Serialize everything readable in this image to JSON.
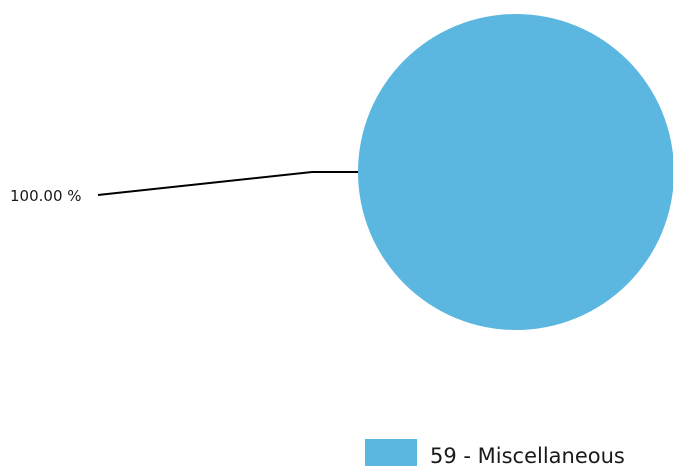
{
  "chart_data": {
    "type": "pie",
    "slices": [
      {
        "category": "59 - Miscellaneous",
        "value": 100.0,
        "label": "100.00 %",
        "color": "#5bb6e0"
      }
    ],
    "legend": {
      "position": "bottom-right",
      "entries": [
        "59 - Miscellaneous"
      ]
    }
  }
}
